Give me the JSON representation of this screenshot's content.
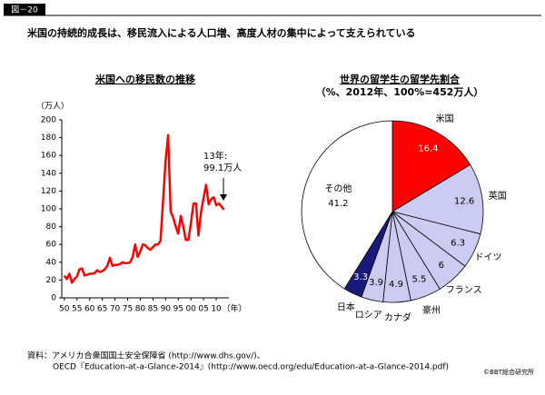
{
  "header": {
    "label": "図－20",
    "title": "米国の持続的成長は、移民流入による人口増、高度人材の集中によって支えられている"
  },
  "chart_data": [
    {
      "type": "line",
      "title": "米国への移民数の推移",
      "y_unit": "（万人）",
      "x_unit": "（年）",
      "x": [
        1950,
        1951,
        1952,
        1953,
        1954,
        1955,
        1956,
        1957,
        1958,
        1959,
        1960,
        1961,
        1962,
        1963,
        1964,
        1965,
        1966,
        1967,
        1968,
        1969,
        1970,
        1971,
        1972,
        1973,
        1974,
        1975,
        1976,
        1977,
        1978,
        1979,
        1980,
        1981,
        1982,
        1983,
        1984,
        1985,
        1986,
        1987,
        1988,
        1989,
        1990,
        1991,
        1992,
        1993,
        1994,
        1995,
        1996,
        1997,
        1998,
        1999,
        2000,
        2001,
        2002,
        2003,
        2004,
        2005,
        2006,
        2007,
        2008,
        2009,
        2010,
        2011,
        2012,
        2013
      ],
      "values": [
        25,
        21,
        27,
        17,
        21,
        24,
        32,
        33,
        25,
        26,
        27,
        27,
        28,
        31,
        29,
        30,
        32,
        36,
        45,
        36,
        37,
        37,
        38,
        40,
        39,
        39,
        40,
        46,
        60,
        46,
        52,
        60,
        59,
        56,
        54,
        57,
        60,
        60,
        64,
        109,
        154,
        183,
        97,
        90,
        80,
        72,
        92,
        80,
        65,
        65,
        84,
        106,
        106,
        70,
        96,
        112,
        127,
        105,
        111,
        113,
        104,
        106,
        103,
        99.1
      ],
      "color": "#ff0000",
      "xlim": [
        1949,
        2015
      ],
      "ylim": [
        0,
        200
      ],
      "xticks": [
        {
          "value": 1950,
          "label": "50"
        },
        {
          "value": 1955,
          "label": "55"
        },
        {
          "value": 1960,
          "label": "60"
        },
        {
          "value": 1965,
          "label": "65"
        },
        {
          "value": 1970,
          "label": "70"
        },
        {
          "value": 1975,
          "label": "75"
        },
        {
          "value": 1980,
          "label": "80"
        },
        {
          "value": 1985,
          "label": "85"
        },
        {
          "value": 1990,
          "label": "90"
        },
        {
          "value": 1995,
          "label": "95"
        },
        {
          "value": 2000,
          "label": "00"
        },
        {
          "value": 2005,
          "label": "05"
        },
        {
          "value": 2010,
          "label": "10"
        }
      ],
      "yticks": [
        0,
        20,
        40,
        60,
        80,
        100,
        120,
        140,
        160,
        180,
        200
      ],
      "annotation": [
        "13年:",
        "99.1万人"
      ]
    },
    {
      "type": "pie",
      "title": "世界の留学生の留学先割合",
      "subtitle": "（%、2012年、100%=452万人）",
      "categories": [
        "米国",
        "英国",
        "ドイツ",
        "フランス",
        "豪州",
        "カナダ",
        "ロシア",
        "日本",
        "その他"
      ],
      "values": [
        16.4,
        12.6,
        6.3,
        6.0,
        5.5,
        4.9,
        3.9,
        3.3,
        41.2
      ],
      "colors": [
        "#ff0000",
        "#ccccf2",
        "#ccccf2",
        "#ccccf2",
        "#ccccf2",
        "#ccccf2",
        "#ccccf2",
        "#1a1a7a",
        "#ffffff"
      ]
    }
  ],
  "source": [
    "資料：アメリカ合衆国国土安全保障省 (http://www.dhs.gov/)、",
    "OECD『Education-at-a-Glance-2014』(http://www.oecd.org/edu/Education-at-a-Glance-2014.pdf)"
  ],
  "copyright": "©BBT総合研究所"
}
